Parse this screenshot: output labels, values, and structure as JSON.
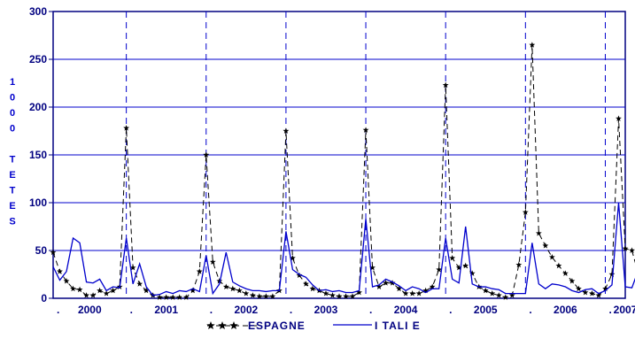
{
  "chart_data": {
    "type": "line",
    "title": "",
    "ylabel_chars": [
      "1",
      "0",
      "0",
      "0",
      "",
      "T",
      "E",
      "T",
      "E",
      "S"
    ],
    "ylim": [
      0,
      300
    ],
    "yticks": [
      0,
      50,
      100,
      150,
      200,
      250,
      300
    ],
    "xlim": [
      0,
      86
    ],
    "xticks_periods": [
      ".",
      "2000",
      ".",
      "2001",
      ".",
      "2002",
      ".",
      "2003",
      ".",
      "2004",
      ".",
      "2005",
      ".",
      "2006",
      ".",
      "2007"
    ],
    "xtick_positions": [
      0,
      5.5,
      11,
      17,
      23,
      29,
      35,
      41,
      47,
      53,
      59,
      65,
      71,
      77,
      83,
      86
    ],
    "year_boundaries": [
      11,
      23,
      35,
      47,
      59,
      71,
      83
    ],
    "grid": true,
    "legend_position": "bottom",
    "series": [
      {
        "name": "ESPAGNE",
        "color": "#000000",
        "style": "dashed-star",
        "values": [
          48,
          28,
          18,
          10,
          9,
          3,
          3,
          8,
          5,
          8,
          12,
          178,
          32,
          15,
          8,
          3,
          1,
          1,
          1,
          1,
          1,
          8,
          28,
          150,
          38,
          18,
          12,
          10,
          8,
          5,
          3,
          2,
          2,
          2,
          8,
          175,
          42,
          24,
          15,
          10,
          8,
          5,
          3,
          2,
          2,
          2,
          6,
          176,
          32,
          12,
          16,
          16,
          10,
          5,
          5,
          5,
          8,
          12,
          30,
          223,
          42,
          32,
          34,
          26,
          12,
          8,
          5,
          3,
          1,
          3,
          35,
          90,
          265,
          68,
          55,
          43,
          34,
          26,
          18,
          10,
          6,
          5,
          3,
          10,
          25,
          188,
          52,
          50,
          25
        ]
      },
      {
        "name": "I TALI E",
        "color": "#0000CC",
        "style": "solid",
        "values": [
          33,
          19,
          28,
          63,
          58,
          17,
          16,
          20,
          8,
          12,
          11,
          63,
          15,
          36,
          12,
          3,
          4,
          7,
          5,
          8,
          7,
          10,
          7,
          45,
          5,
          15,
          48,
          17,
          13,
          10,
          8,
          8,
          7,
          8,
          8,
          70,
          30,
          25,
          22,
          14,
          8,
          9,
          7,
          8,
          6,
          6,
          8,
          83,
          12,
          14,
          20,
          17,
          13,
          8,
          12,
          10,
          6,
          10,
          10,
          63,
          20,
          16,
          75,
          15,
          12,
          12,
          10,
          9,
          5,
          5,
          5,
          5,
          58,
          15,
          10,
          15,
          14,
          12,
          8,
          6,
          9,
          10,
          5,
          8,
          14,
          100,
          12,
          11,
          30
        ]
      }
    ]
  }
}
